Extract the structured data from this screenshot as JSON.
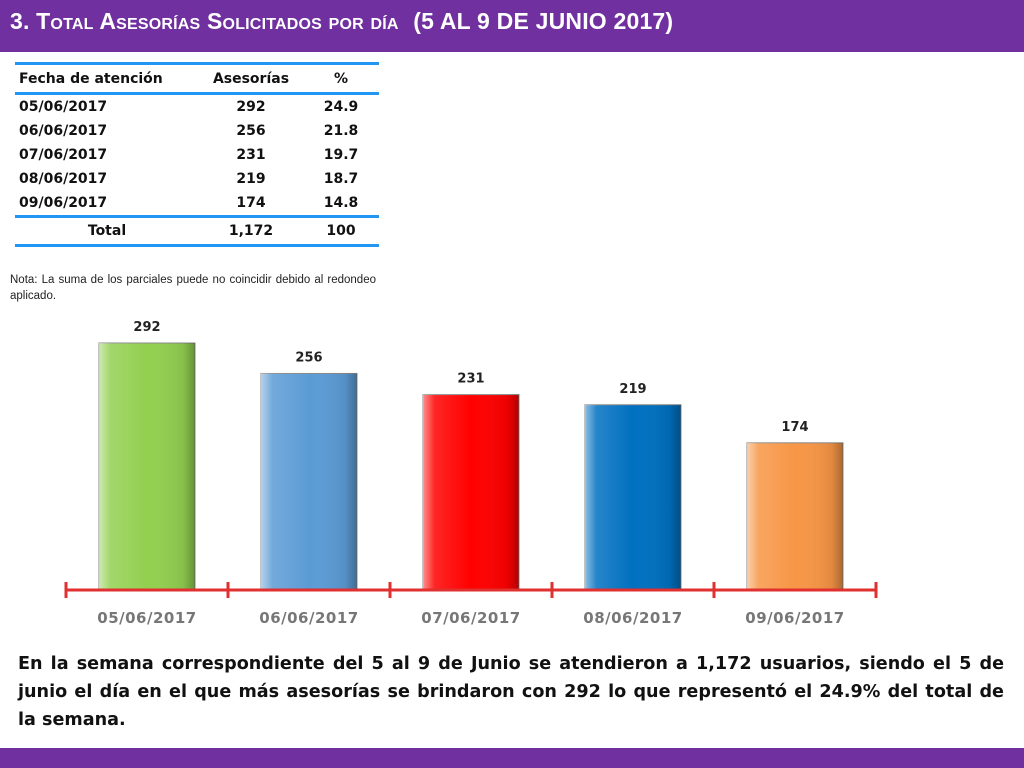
{
  "header": {
    "title_main": "3. Total Asesorías Solicitados por día",
    "title_range": "(5 AL 9 DE JUNIO 2017)"
  },
  "table": {
    "headers": [
      "Fecha de atención",
      "Asesorías",
      "%"
    ],
    "rows": [
      [
        "05/06/2017",
        "292",
        "24.9"
      ],
      [
        "06/06/2017",
        "256",
        "21.8"
      ],
      [
        "07/06/2017",
        "231",
        "19.7"
      ],
      [
        "08/06/2017",
        "219",
        "18.7"
      ],
      [
        "09/06/2017",
        "174",
        "14.8"
      ]
    ],
    "total": [
      "Total",
      "1,172",
      "100"
    ]
  },
  "note": "Nota: La suma de los parciales puede no coincidir debido al redondeo aplicado.",
  "chart_data": {
    "type": "bar",
    "categories": [
      "05/06/2017",
      "06/06/2017",
      "07/06/2017",
      "08/06/2017",
      "09/06/2017"
    ],
    "values": [
      292,
      256,
      231,
      219,
      174
    ],
    "data_labels": [
      "292",
      "256",
      "231",
      "219",
      "174"
    ],
    "colors": [
      "#92d050",
      "#5b9bd5",
      "#ff0000",
      "#0070c0",
      "#f79646"
    ],
    "axis_color": "#e03030",
    "title": "",
    "xlabel": "",
    "ylabel": "",
    "ylim": [
      0,
      292
    ],
    "grid": false
  },
  "summary": "En la semana correspondiente del 5 al 9 de Junio se atendieron a 1,172 usuarios, siendo el 5 de junio el día en el que más asesorías se brindaron con 292 lo que representó el 24.9% del total de la semana.",
  "colors": {
    "header_bg": "#7030a0",
    "table_rule": "#2196f3"
  }
}
